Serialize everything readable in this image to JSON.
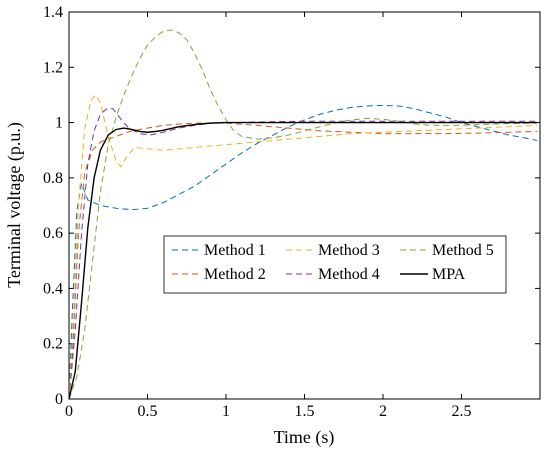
{
  "chart_data": {
    "type": "line",
    "xlabel": "Time (s)",
    "ylabel": "Terminal voltage (p.u.)",
    "xlim": [
      0,
      3
    ],
    "ylim": [
      0,
      1.4
    ],
    "x_ticks": [
      0,
      0.5,
      1,
      1.5,
      2,
      2.5
    ],
    "x_tick_labels": [
      "0",
      "0.5",
      "1",
      "1.5",
      "2",
      "2.5"
    ],
    "y_ticks": [
      0,
      0.2,
      0.4,
      0.6,
      0.8,
      1.0,
      1.2,
      1.4
    ],
    "y_tick_labels": [
      "0",
      "0.2",
      "0.4",
      "0.6",
      "0.8",
      "1",
      "1.2",
      "1.4"
    ],
    "grid": false,
    "legend_placement": "center-right",
    "series": [
      {
        "name": "Method 1",
        "color": "#0072BD",
        "dashed": true,
        "points": [
          [
            0,
            0
          ],
          [
            0.02,
            0.3
          ],
          [
            0.05,
            0.68
          ],
          [
            0.08,
            0.78
          ],
          [
            0.12,
            0.72
          ],
          [
            0.2,
            0.7
          ],
          [
            0.3,
            0.69
          ],
          [
            0.4,
            0.685
          ],
          [
            0.5,
            0.69
          ],
          [
            0.6,
            0.71
          ],
          [
            0.7,
            0.74
          ],
          [
            0.8,
            0.77
          ],
          [
            0.9,
            0.81
          ],
          [
            1.0,
            0.85
          ],
          [
            1.1,
            0.89
          ],
          [
            1.2,
            0.925
          ],
          [
            1.3,
            0.955
          ],
          [
            1.4,
            0.985
          ],
          [
            1.5,
            1.01
          ],
          [
            1.6,
            1.03
          ],
          [
            1.7,
            1.045
          ],
          [
            1.8,
            1.055
          ],
          [
            1.9,
            1.06
          ],
          [
            2.0,
            1.062
          ],
          [
            2.1,
            1.06
          ],
          [
            2.2,
            1.05
          ],
          [
            2.3,
            1.035
          ],
          [
            2.4,
            1.02
          ],
          [
            2.5,
            1.0
          ],
          [
            2.6,
            0.985
          ],
          [
            2.7,
            0.97
          ],
          [
            2.8,
            0.955
          ],
          [
            2.9,
            0.945
          ],
          [
            2.98,
            0.935
          ]
        ]
      },
      {
        "name": "Method 2",
        "color": "#D95319",
        "dashed": true,
        "points": [
          [
            0,
            0
          ],
          [
            0.03,
            0.25
          ],
          [
            0.06,
            0.6
          ],
          [
            0.1,
            0.82
          ],
          [
            0.15,
            0.9
          ],
          [
            0.2,
            0.93
          ],
          [
            0.3,
            0.95
          ],
          [
            0.4,
            0.97
          ],
          [
            0.5,
            0.98
          ],
          [
            0.6,
            0.99
          ],
          [
            0.7,
            0.995
          ],
          [
            0.8,
            0.998
          ],
          [
            1.0,
            0.998
          ],
          [
            1.2,
            0.99
          ],
          [
            1.4,
            0.98
          ],
          [
            1.6,
            0.97
          ],
          [
            1.8,
            0.965
          ],
          [
            2.0,
            0.96
          ],
          [
            2.2,
            0.96
          ],
          [
            2.4,
            0.96
          ],
          [
            2.6,
            0.962
          ],
          [
            2.8,
            0.965
          ],
          [
            2.98,
            0.968
          ]
        ]
      },
      {
        "name": "Method 3",
        "color": "#EDB120",
        "dashed": true,
        "points": [
          [
            0,
            0
          ],
          [
            0.03,
            0.3
          ],
          [
            0.06,
            0.7
          ],
          [
            0.1,
            0.98
          ],
          [
            0.14,
            1.08
          ],
          [
            0.17,
            1.1
          ],
          [
            0.2,
            1.07
          ],
          [
            0.25,
            0.95
          ],
          [
            0.3,
            0.86
          ],
          [
            0.33,
            0.84
          ],
          [
            0.37,
            0.88
          ],
          [
            0.42,
            0.91
          ],
          [
            0.5,
            0.905
          ],
          [
            0.6,
            0.9
          ],
          [
            0.7,
            0.905
          ],
          [
            0.8,
            0.91
          ],
          [
            1.0,
            0.92
          ],
          [
            1.2,
            0.93
          ],
          [
            1.4,
            0.94
          ],
          [
            1.6,
            0.95
          ],
          [
            1.8,
            0.96
          ],
          [
            2.0,
            0.965
          ],
          [
            2.2,
            0.97
          ],
          [
            2.4,
            0.975
          ],
          [
            2.6,
            0.98
          ],
          [
            2.8,
            0.985
          ],
          [
            2.98,
            0.99
          ]
        ]
      },
      {
        "name": "Method 4",
        "color": "#7E2F8E",
        "dashed": true,
        "points": [
          [
            0,
            0
          ],
          [
            0.04,
            0.25
          ],
          [
            0.08,
            0.6
          ],
          [
            0.12,
            0.85
          ],
          [
            0.16,
            0.97
          ],
          [
            0.2,
            1.03
          ],
          [
            0.24,
            1.05
          ],
          [
            0.28,
            1.05
          ],
          [
            0.32,
            1.02
          ],
          [
            0.38,
            0.98
          ],
          [
            0.45,
            0.96
          ],
          [
            0.52,
            0.955
          ],
          [
            0.6,
            0.965
          ],
          [
            0.7,
            0.98
          ],
          [
            0.8,
            0.99
          ],
          [
            0.9,
            0.998
          ],
          [
            1.0,
            1.0
          ],
          [
            1.5,
            1.005
          ],
          [
            2.0,
            1.005
          ],
          [
            2.5,
            1.005
          ],
          [
            2.98,
            1.005
          ]
        ]
      },
      {
        "name": "Method 5",
        "color": "#77AC30",
        "dashed": true,
        "points": [
          [
            0,
            0
          ],
          [
            0.05,
            0.08
          ],
          [
            0.1,
            0.25
          ],
          [
            0.15,
            0.5
          ],
          [
            0.2,
            0.75
          ],
          [
            0.25,
            0.92
          ],
          [
            0.3,
            1.02
          ],
          [
            0.35,
            1.1
          ],
          [
            0.4,
            1.17
          ],
          [
            0.45,
            1.23
          ],
          [
            0.5,
            1.28
          ],
          [
            0.55,
            1.31
          ],
          [
            0.6,
            1.33
          ],
          [
            0.65,
            1.335
          ],
          [
            0.7,
            1.325
          ],
          [
            0.75,
            1.3
          ],
          [
            0.8,
            1.25
          ],
          [
            0.85,
            1.19
          ],
          [
            0.9,
            1.12
          ],
          [
            0.95,
            1.06
          ],
          [
            1.0,
            1.01
          ],
          [
            1.05,
            0.97
          ],
          [
            1.1,
            0.95
          ],
          [
            1.2,
            0.94
          ],
          [
            1.3,
            0.945
          ],
          [
            1.4,
            0.955
          ],
          [
            1.5,
            0.97
          ],
          [
            1.6,
            0.985
          ],
          [
            1.7,
            1.0
          ],
          [
            1.8,
            1.01
          ],
          [
            1.9,
            1.015
          ],
          [
            2.0,
            1.012
          ],
          [
            2.1,
            1.005
          ],
          [
            2.2,
            0.995
          ],
          [
            2.3,
            0.99
          ],
          [
            2.5,
            0.99
          ],
          [
            2.7,
            0.995
          ],
          [
            2.98,
            0.998
          ]
        ]
      },
      {
        "name": "MPA",
        "color": "#000000",
        "dashed": false,
        "points": [
          [
            0,
            0
          ],
          [
            0.04,
            0.1
          ],
          [
            0.08,
            0.35
          ],
          [
            0.12,
            0.62
          ],
          [
            0.16,
            0.8
          ],
          [
            0.2,
            0.9
          ],
          [
            0.25,
            0.955
          ],
          [
            0.3,
            0.975
          ],
          [
            0.35,
            0.98
          ],
          [
            0.4,
            0.975
          ],
          [
            0.45,
            0.968
          ],
          [
            0.5,
            0.965
          ],
          [
            0.55,
            0.968
          ],
          [
            0.6,
            0.972
          ],
          [
            0.7,
            0.985
          ],
          [
            0.8,
            0.993
          ],
          [
            0.9,
            0.998
          ],
          [
            1.0,
            1.0
          ],
          [
            1.5,
            1.0
          ],
          [
            2.0,
            1.0
          ],
          [
            2.5,
            1.0
          ],
          [
            2.98,
            1.0
          ]
        ]
      }
    ]
  }
}
